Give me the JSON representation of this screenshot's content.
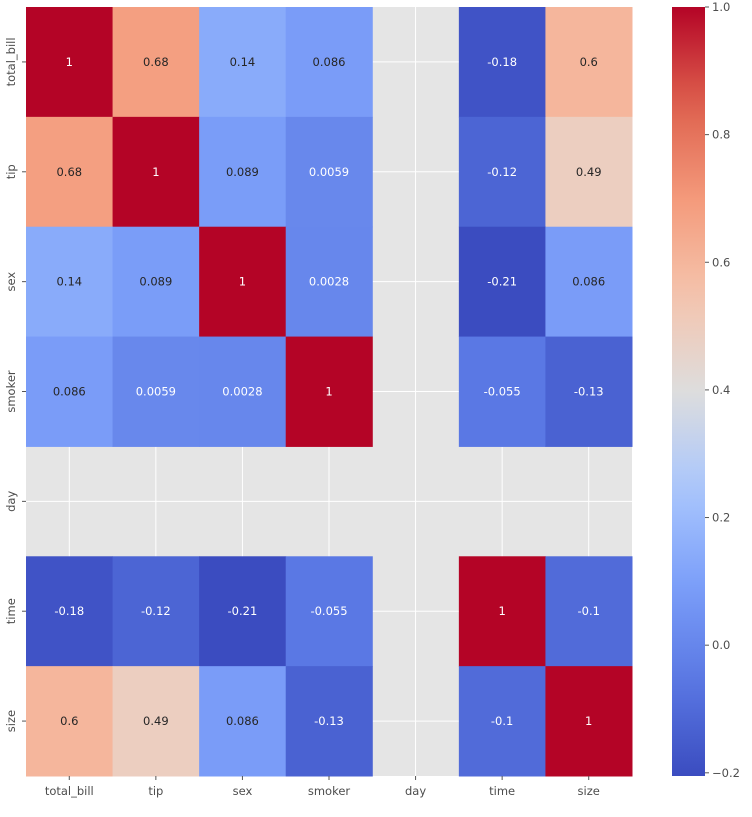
{
  "chart_data": {
    "type": "heatmap",
    "title": "",
    "xlabel": "",
    "ylabel": "",
    "x_categories": [
      "total_bill",
      "tip",
      "sex",
      "smoker",
      "day",
      "time",
      "size"
    ],
    "y_categories": [
      "total_bill",
      "tip",
      "sex",
      "smoker",
      "day",
      "time",
      "size"
    ],
    "values": [
      [
        1,
        0.68,
        0.14,
        0.086,
        null,
        -0.18,
        0.6
      ],
      [
        0.68,
        1,
        0.089,
        0.0059,
        null,
        -0.12,
        0.49
      ],
      [
        0.14,
        0.089,
        1,
        0.0028,
        null,
        -0.21,
        0.086
      ],
      [
        0.086,
        0.0059,
        0.0028,
        1,
        null,
        -0.055,
        -0.13
      ],
      [
        null,
        null,
        null,
        null,
        null,
        null,
        null
      ],
      [
        -0.18,
        -0.12,
        -0.21,
        -0.055,
        null,
        1,
        -0.1
      ],
      [
        0.6,
        0.49,
        0.086,
        -0.13,
        null,
        -0.1,
        1
      ]
    ],
    "labels": [
      [
        "1",
        "0.68",
        "0.14",
        "0.086",
        "",
        "-0.18",
        "0.6"
      ],
      [
        "0.68",
        "1",
        "0.089",
        "0.0059",
        "",
        "-0.12",
        "0.49"
      ],
      [
        "0.14",
        "0.089",
        "1",
        "0.0028",
        "",
        "-0.21",
        "0.086"
      ],
      [
        "0.086",
        "0.0059",
        "0.0028",
        "1",
        "",
        "-0.055",
        "-0.13"
      ],
      [
        "",
        "",
        "",
        "",
        "",
        "",
        ""
      ],
      [
        "-0.18",
        "-0.12",
        "-0.21",
        "-0.055",
        "",
        "1",
        "-0.1"
      ],
      [
        "0.6",
        "0.49",
        "0.086",
        "-0.13",
        "",
        "-0.1",
        "1"
      ]
    ],
    "colormap": "coolwarm",
    "colorbar": {
      "range": [
        -0.205,
        1.0
      ],
      "ticks": [
        1.0,
        0.8,
        0.6,
        0.4,
        0.2,
        0.0,
        -0.2
      ],
      "tick_labels": [
        "1.0",
        "0.8",
        "0.6",
        "0.4",
        "0.2",
        "0.0",
        "−0.2"
      ]
    },
    "grid": true,
    "missing_color": "#e5e5e5"
  }
}
